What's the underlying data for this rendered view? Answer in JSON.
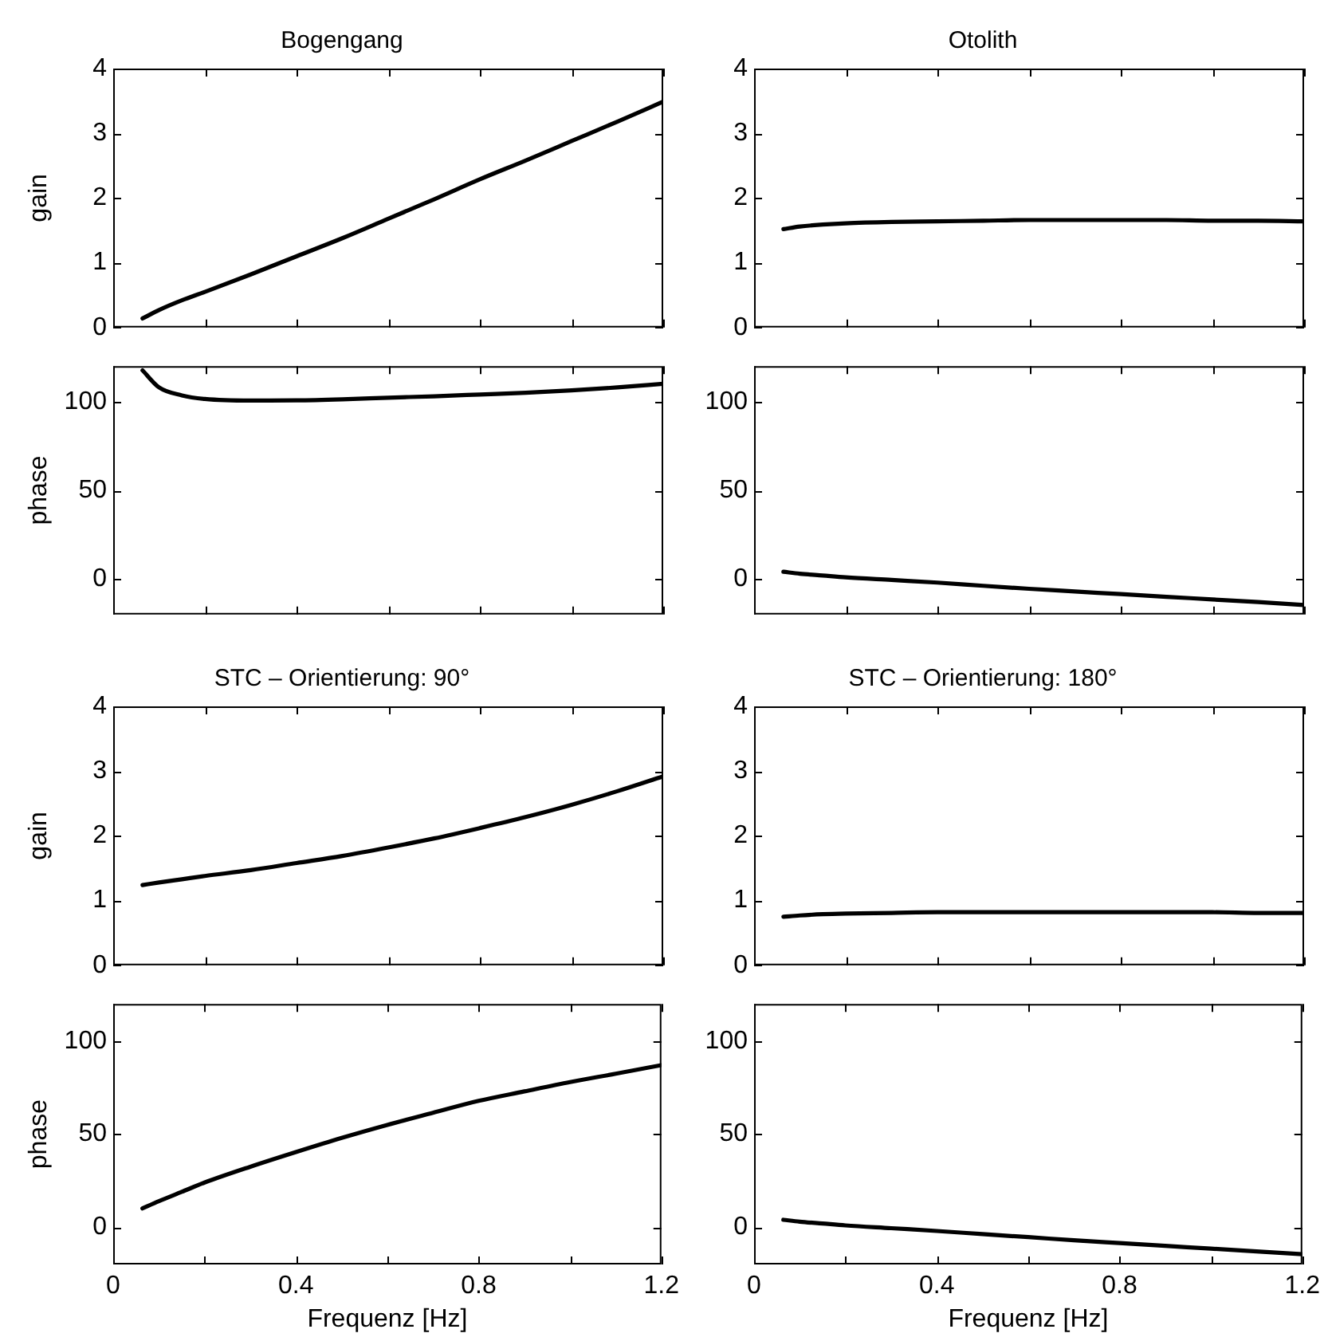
{
  "chart_data": [
    {
      "type": "line",
      "title": "Bogengang",
      "ylabel": "gain",
      "x": [
        0.064,
        0.1,
        0.15,
        0.2,
        0.3,
        0.4,
        0.5,
        0.6,
        0.7,
        0.8,
        0.9,
        1.0,
        1.1,
        1.2
      ],
      "values": [
        0.14,
        0.27,
        0.42,
        0.55,
        0.82,
        1.1,
        1.38,
        1.68,
        1.98,
        2.29,
        2.58,
        2.88,
        3.18,
        3.49
      ],
      "color": "#000000",
      "xlim": [
        0,
        1.2
      ],
      "xticks": [
        0,
        {
          "value": 0.2,
          "label": null
        },
        0.4,
        {
          "value": 0.6,
          "label": null
        },
        0.8,
        {
          "value": 1.0,
          "label": null
        },
        1.2
      ],
      "ylim": [
        0,
        4
      ],
      "yticks": [
        0,
        1,
        2,
        3,
        4
      ],
      "tick_labels": "y",
      "marker": "none",
      "grid": false
    },
    {
      "type": "line",
      "title": "Otolith",
      "x": [
        0.064,
        0.1,
        0.15,
        0.2,
        0.3,
        0.4,
        0.5,
        0.6,
        0.7,
        0.8,
        0.9,
        1.0,
        1.1,
        1.2
      ],
      "values": [
        1.52,
        1.56,
        1.59,
        1.61,
        1.63,
        1.64,
        1.65,
        1.66,
        1.66,
        1.66,
        1.66,
        1.65,
        1.65,
        1.64
      ],
      "color": "#000000",
      "xlim": [
        0,
        1.2
      ],
      "xticks": [
        0,
        {
          "value": 0.2,
          "label": null
        },
        0.4,
        {
          "value": 0.6,
          "label": null
        },
        0.8,
        {
          "value": 1.0,
          "label": null
        },
        1.2
      ],
      "ylim": [
        0,
        4
      ],
      "yticks": [
        0,
        1,
        2,
        3,
        4
      ],
      "tick_labels": "y",
      "marker": "none",
      "grid": false
    },
    {
      "type": "line",
      "ylabel": "phase",
      "x": [
        0.064,
        0.1,
        0.15,
        0.2,
        0.3,
        0.4,
        0.5,
        0.6,
        0.7,
        0.8,
        0.9,
        1.0,
        1.1,
        1.2
      ],
      "values": [
        117.6,
        108,
        103.5,
        101.5,
        100.6,
        100.7,
        101.3,
        102.2,
        103,
        104,
        105,
        106.3,
        108,
        110
      ],
      "color": "#000000",
      "xlim": [
        0,
        1.2
      ],
      "xticks": [
        0,
        {
          "value": 0.2,
          "label": null
        },
        0.4,
        {
          "value": 0.6,
          "label": null
        },
        0.8,
        {
          "value": 1.0,
          "label": null
        },
        1.2
      ],
      "ylim": [
        -20,
        120
      ],
      "yticks": [
        0,
        50,
        100
      ],
      "tick_labels": "y",
      "marker": "none",
      "grid": false
    },
    {
      "type": "line",
      "x": [
        0.064,
        0.1,
        0.15,
        0.2,
        0.3,
        0.4,
        0.5,
        0.6,
        0.7,
        0.8,
        0.9,
        1.0,
        1.1,
        1.2
      ],
      "values": [
        4.1,
        3,
        2,
        1,
        -0.5,
        -2,
        -3.8,
        -5.5,
        -7,
        -8.5,
        -10,
        -11.5,
        -13,
        -14.6
      ],
      "color": "#000000",
      "xlim": [
        0,
        1.2
      ],
      "xticks": [
        0,
        {
          "value": 0.2,
          "label": null
        },
        0.4,
        {
          "value": 0.6,
          "label": null
        },
        0.8,
        {
          "value": 1.0,
          "label": null
        },
        1.2
      ],
      "ylim": [
        -20,
        120
      ],
      "yticks": [
        0,
        50,
        100
      ],
      "tick_labels": "y",
      "marker": "none",
      "grid": false
    },
    {
      "type": "line",
      "title": "STC – Orientierung: 90°",
      "ylabel": "gain",
      "x": [
        0.064,
        0.1,
        0.15,
        0.2,
        0.3,
        0.4,
        0.5,
        0.6,
        0.7,
        0.8,
        0.9,
        1.0,
        1.1,
        1.2
      ],
      "values": [
        1.24,
        1.28,
        1.33,
        1.38,
        1.47,
        1.58,
        1.69,
        1.82,
        1.96,
        2.12,
        2.29,
        2.48,
        2.69,
        2.92
      ],
      "color": "#000000",
      "xlim": [
        0,
        1.2
      ],
      "xticks": [
        0,
        {
          "value": 0.2,
          "label": null
        },
        0.4,
        {
          "value": 0.6,
          "label": null
        },
        0.8,
        {
          "value": 1.0,
          "label": null
        },
        1.2
      ],
      "ylim": [
        0,
        4
      ],
      "yticks": [
        0,
        1,
        2,
        3,
        4
      ],
      "tick_labels": "y",
      "marker": "none",
      "grid": false
    },
    {
      "type": "line",
      "title": "STC – Orientierung: 180°",
      "x": [
        0.064,
        0.1,
        0.15,
        0.2,
        0.3,
        0.4,
        0.5,
        0.6,
        0.7,
        0.8,
        0.9,
        1.0,
        1.1,
        1.2
      ],
      "values": [
        0.75,
        0.77,
        0.79,
        0.8,
        0.81,
        0.82,
        0.82,
        0.82,
        0.82,
        0.82,
        0.82,
        0.82,
        0.81,
        0.81
      ],
      "color": "#000000",
      "xlim": [
        0,
        1.2
      ],
      "xticks": [
        0,
        {
          "value": 0.2,
          "label": null
        },
        0.4,
        {
          "value": 0.6,
          "label": null
        },
        0.8,
        {
          "value": 1.0,
          "label": null
        },
        1.2
      ],
      "ylim": [
        0,
        4
      ],
      "yticks": [
        0,
        1,
        2,
        3,
        4
      ],
      "tick_labels": "y",
      "marker": "none",
      "grid": false
    },
    {
      "type": "line",
      "ylabel": "phase",
      "xlabel": "Frequenz [Hz]",
      "x": [
        0.064,
        0.1,
        0.15,
        0.2,
        0.3,
        0.4,
        0.5,
        0.6,
        0.7,
        0.8,
        0.9,
        1.0,
        1.1,
        1.2
      ],
      "values": [
        10.1,
        14,
        19,
        24,
        32.5,
        40.4,
        48,
        55,
        61.5,
        67.9,
        73,
        78,
        82.5,
        87.1
      ],
      "color": "#000000",
      "xlim": [
        0,
        1.2
      ],
      "xticks": [
        0,
        {
          "value": 0.2,
          "label": null
        },
        0.4,
        {
          "value": 0.6,
          "label": null
        },
        0.8,
        {
          "value": 1.0,
          "label": null
        },
        1.2
      ],
      "ylim": [
        -20,
        120
      ],
      "yticks": [
        0,
        50,
        100
      ],
      "marker": "none",
      "grid": false
    },
    {
      "type": "line",
      "xlabel": "Frequenz [Hz]",
      "x": [
        0.064,
        0.1,
        0.15,
        0.2,
        0.3,
        0.4,
        0.5,
        0.6,
        0.7,
        0.8,
        0.9,
        1.0,
        1.1,
        1.2
      ],
      "values": [
        4,
        3,
        2,
        1,
        -0.5,
        -2,
        -3.7,
        -5.3,
        -7,
        -8.5,
        -10,
        -11.5,
        -13,
        -14.5
      ],
      "color": "#000000",
      "xlim": [
        0,
        1.2
      ],
      "xticks": [
        0,
        {
          "value": 0.2,
          "label": null
        },
        0.4,
        {
          "value": 0.6,
          "label": null
        },
        0.8,
        {
          "value": 1.0,
          "label": null
        },
        1.2
      ],
      "ylim": [
        -20,
        120
      ],
      "yticks": [
        0,
        50,
        100
      ],
      "marker": "none",
      "grid": false
    }
  ]
}
